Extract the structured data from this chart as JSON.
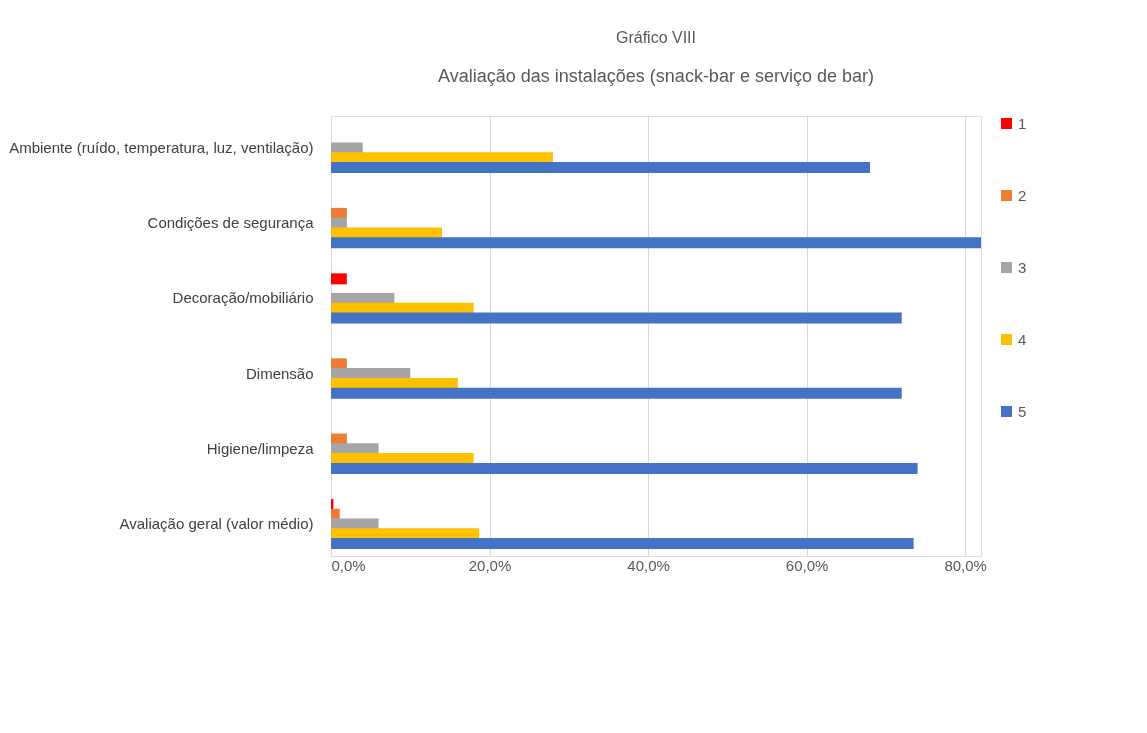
{
  "chart_data": {
    "type": "bar",
    "orientation": "horizontal",
    "title": "Gráfico VIII",
    "subtitle": "Avaliação das instalações (snack-bar e serviço de bar)",
    "categories": [
      "Ambiente (ruído, temperatura, luz, ventilação)",
      "Condições de segurança",
      "Decoração/mobiliário",
      "Dimensão",
      "Higiene/limpeza",
      "Avaliação geral (valor médio)"
    ],
    "series": [
      {
        "name": "1",
        "color": "#ff0000",
        "values": [
          0,
          0,
          2,
          0,
          0,
          0.3
        ]
      },
      {
        "name": "2",
        "color": "#ed7d31",
        "values": [
          0,
          2,
          0,
          2,
          2,
          1.1
        ]
      },
      {
        "name": "3",
        "color": "#a5a5a5",
        "values": [
          4,
          2,
          8,
          10,
          6,
          6
        ]
      },
      {
        "name": "4",
        "color": "#ffc000",
        "values": [
          28,
          14,
          18,
          16,
          18,
          18.7
        ]
      },
      {
        "name": "5",
        "color": "#4472c4",
        "values": [
          68,
          82,
          72,
          72,
          74,
          73.5
        ]
      }
    ],
    "xlim": [
      0,
      82
    ],
    "xticks": [
      {
        "value": 0,
        "label": "0,0%"
      },
      {
        "value": 20,
        "label": "20,0%"
      },
      {
        "value": 40,
        "label": "40,0%"
      },
      {
        "value": 60,
        "label": "60,0%"
      },
      {
        "value": 80,
        "label": "80,0%"
      }
    ],
    "grid": "x",
    "legend": "right"
  }
}
